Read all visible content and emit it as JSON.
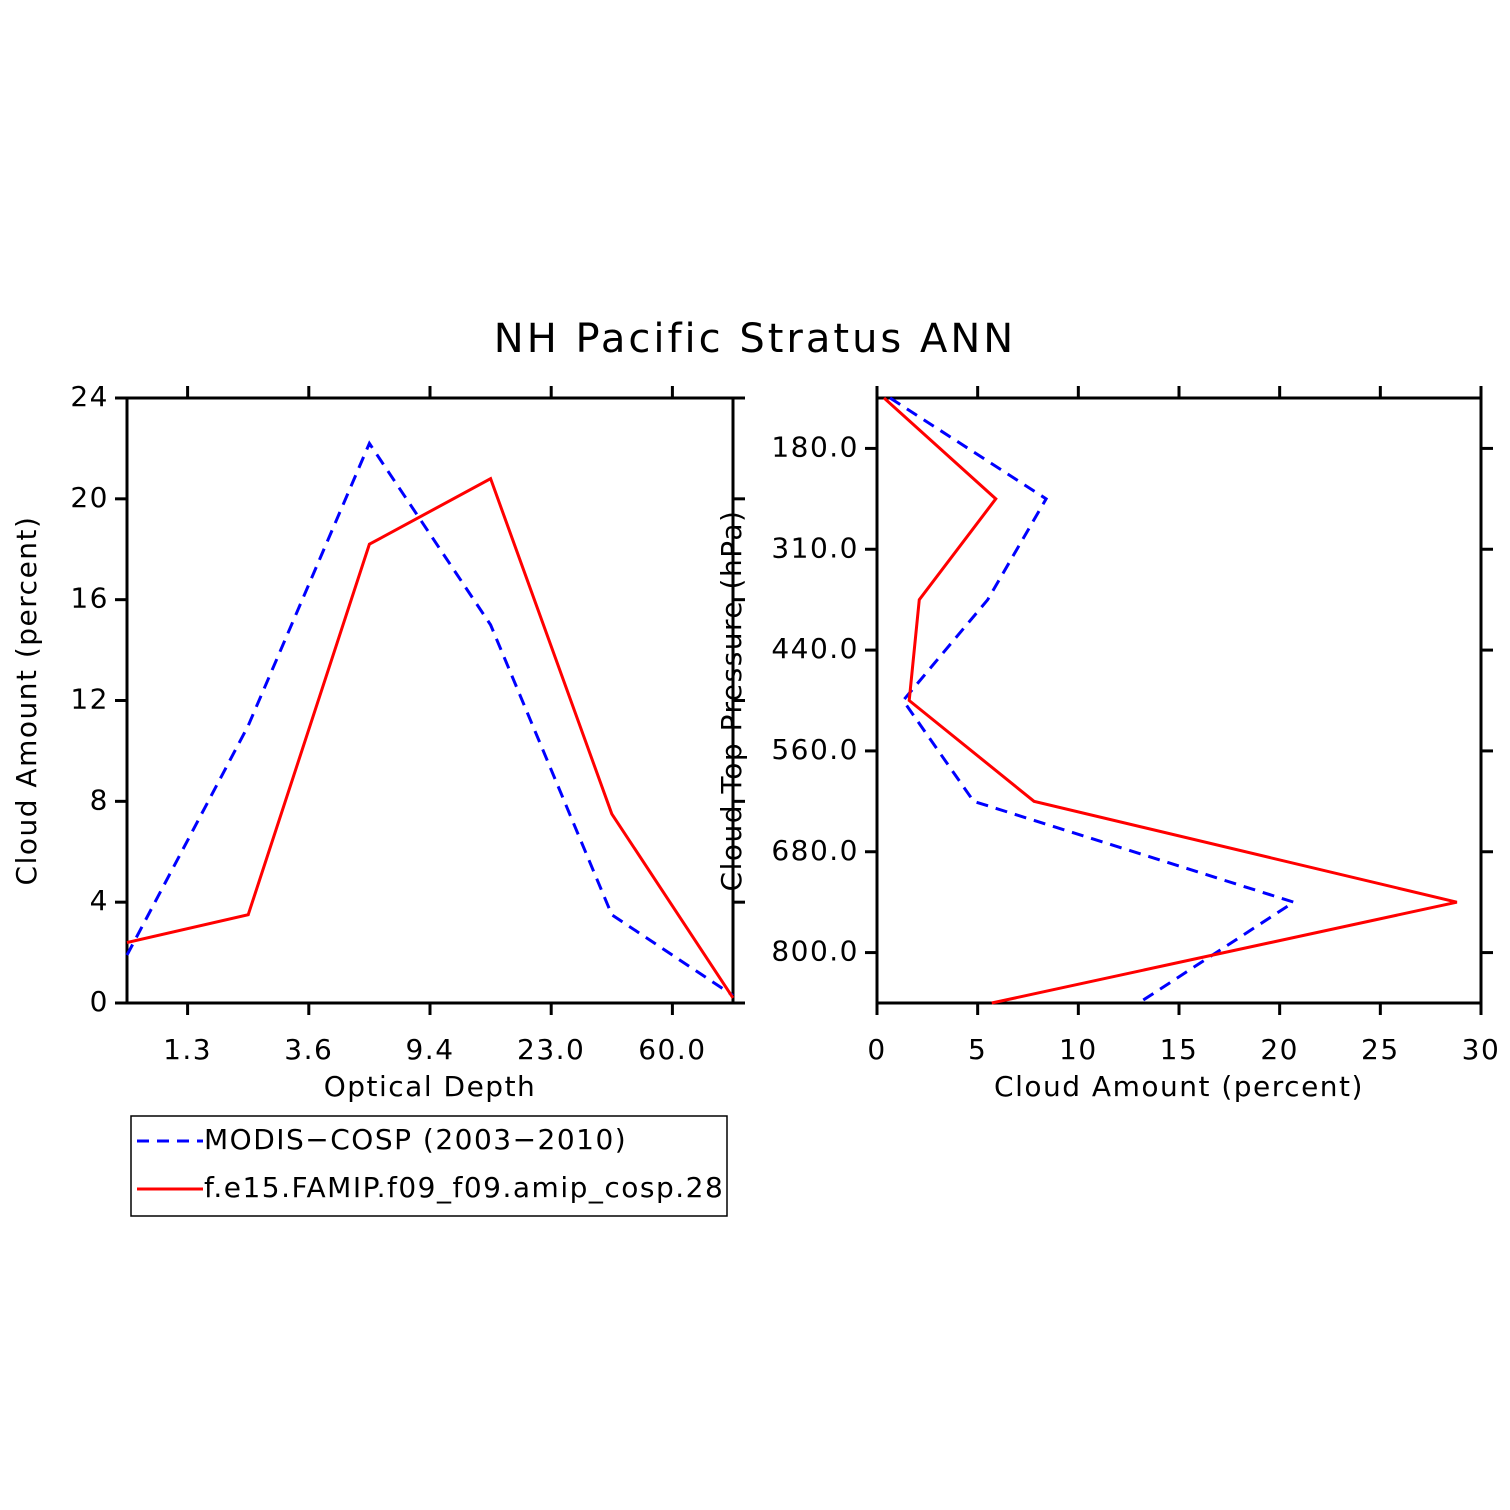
{
  "title": "NH Pacific Stratus ANN",
  "chart_data": [
    {
      "type": "line",
      "orientation": "vertical",
      "xlabel": "Optical Depth",
      "ylabel": "Cloud Amount (percent)",
      "x": [
        0,
        1,
        2,
        3,
        4,
        5
      ],
      "xlim": [
        0,
        5
      ],
      "xticks": [
        {
          "value": 0.5,
          "label": "1.3"
        },
        {
          "value": 1.5,
          "label": "3.6"
        },
        {
          "value": 2.5,
          "label": "9.4"
        },
        {
          "value": 3.5,
          "label": "23.0"
        },
        {
          "value": 4.5,
          "label": "60.0"
        }
      ],
      "ylim": [
        0,
        24
      ],
      "yticks": [
        0,
        4,
        8,
        12,
        16,
        20,
        24
      ],
      "series": [
        {
          "name": "MODIS−COSP (2003−2010)",
          "color": "#0000ff",
          "dash": true,
          "values": [
            1.9,
            11,
            22.2,
            15,
            3.5,
            0.3
          ]
        },
        {
          "name": "f.e15.FAMIP.f09_f09.amip_cosp.28",
          "color": "#ff0000",
          "dash": false,
          "values": [
            2.4,
            3.5,
            18.2,
            20.8,
            7.5,
            0.2
          ]
        }
      ]
    },
    {
      "type": "line",
      "orientation": "horizontal",
      "xlabel": "Cloud Amount (percent)",
      "ylabel": "Cloud Top Pressure (hPa)",
      "y": [
        0,
        1,
        2,
        3,
        4,
        5,
        6
      ],
      "ylim": [
        6,
        0
      ],
      "yticks": [
        {
          "value": 0.5,
          "label": "180.0"
        },
        {
          "value": 1.5,
          "label": "310.0"
        },
        {
          "value": 2.5,
          "label": "440.0"
        },
        {
          "value": 3.5,
          "label": "560.0"
        },
        {
          "value": 4.5,
          "label": "680.0"
        },
        {
          "value": 5.5,
          "label": "800.0"
        }
      ],
      "xlim": [
        0,
        30
      ],
      "xticks": [
        0,
        5,
        10,
        15,
        20,
        25,
        30
      ],
      "series": [
        {
          "color": "#0000ff",
          "dash": true,
          "values": [
            0.65,
            8.4,
            5.5,
            1.3,
            4.8,
            20.7,
            13.0
          ]
        },
        {
          "color": "#ff0000",
          "dash": false,
          "values": [
            0.35,
            5.9,
            2.1,
            1.6,
            7.8,
            28.8,
            5.7
          ]
        }
      ]
    }
  ]
}
